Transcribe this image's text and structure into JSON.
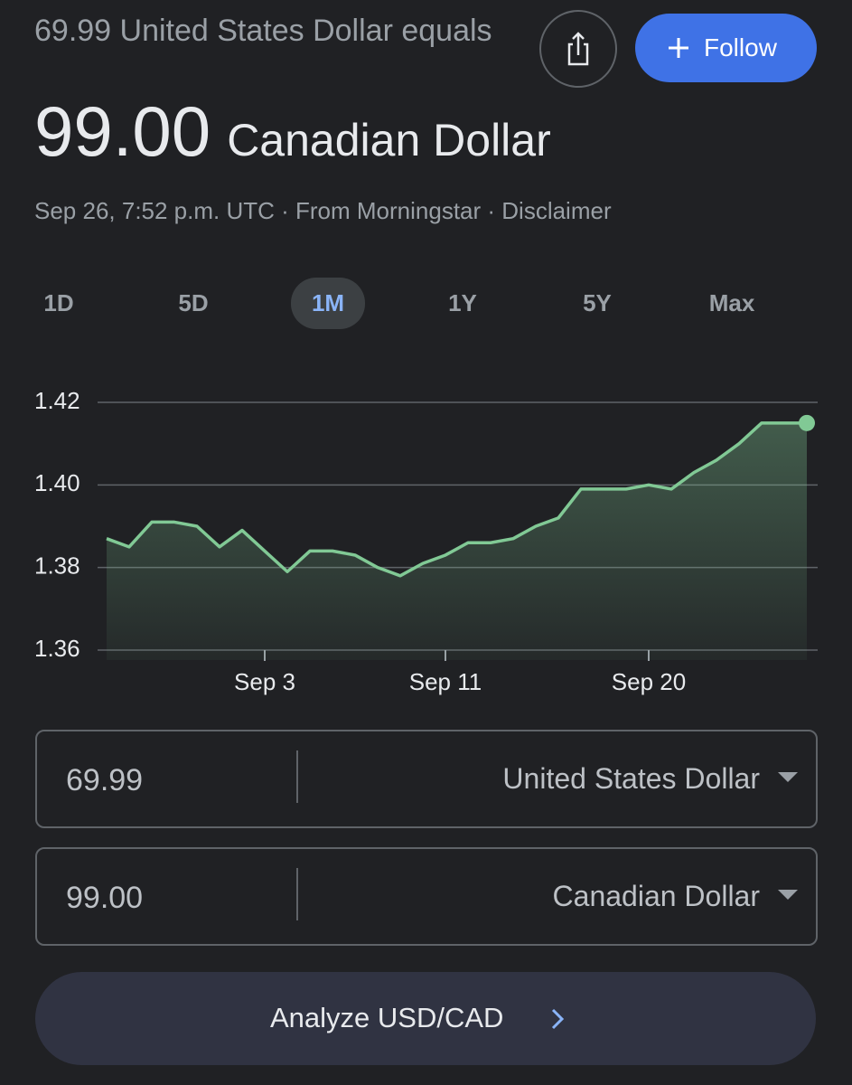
{
  "header": {
    "source_amount_text": "69.99 United States Dollar equals",
    "result_amount": "99.00",
    "result_currency": "Canadian Dollar",
    "meta": "Sep 26, 7:52 p.m. UTC · From Morningstar · Disclaimer",
    "follow": "Follow"
  },
  "ranges": {
    "items": [
      "1D",
      "5D",
      "1M",
      "1Y",
      "5Y",
      "Max"
    ],
    "selected": "1M"
  },
  "chart_data": {
    "type": "line",
    "categories": [
      null,
      null,
      null,
      null,
      null,
      null,
      null,
      "Sep 3",
      null,
      null,
      null,
      null,
      null,
      null,
      null,
      "Sep 11",
      null,
      null,
      null,
      null,
      null,
      null,
      null,
      null,
      "Sep 20",
      null,
      null,
      null,
      null,
      null,
      null,
      null
    ],
    "series": [
      {
        "color": "#81c995",
        "values": [
          1.387,
          1.385,
          1.391,
          1.391,
          1.39,
          1.385,
          1.389,
          1.384,
          1.379,
          1.384,
          1.384,
          1.383,
          1.38,
          1.378,
          1.381,
          1.383,
          1.386,
          1.386,
          1.387,
          1.39,
          1.392,
          1.399,
          1.399,
          1.399,
          1.4,
          1.399,
          1.403,
          1.406,
          1.41,
          1.415,
          1.415,
          1.415
        ]
      }
    ],
    "ylim": [
      1.36,
      1.42
    ],
    "yticks": [
      1.36,
      1.38,
      {
        "value": 1.4,
        "label": "1.40"
      },
      1.42
    ],
    "grid": true
  },
  "converter": {
    "rows": [
      {
        "amount": "69.99",
        "currency": "United States Dollar"
      },
      {
        "amount": "99.00",
        "currency": "Canadian Dollar"
      }
    ]
  },
  "analyze": "Analyze USD/CAD"
}
